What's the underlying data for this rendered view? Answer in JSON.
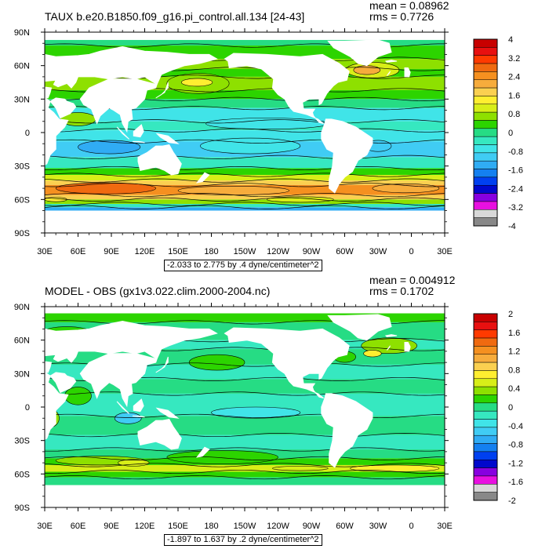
{
  "chart_data": [
    {
      "type": "heatmap",
      "title": "TAUX b.e20.B1850.f09_g16.pi_control.all.134 [24-43]",
      "mean_text": "mean = 0.08962",
      "rms_text": "rms = 0.7726",
      "range_text": "-2.033 to 2.775 by .4 dyne/centimeter^2",
      "x_ticks": [
        "30E",
        "60E",
        "90E",
        "120E",
        "150E",
        "180",
        "150W",
        "120W",
        "90W",
        "60W",
        "30W",
        "0",
        "30E"
      ],
      "y_ticks": [
        "90N",
        "60N",
        "30N",
        "0",
        "30S",
        "60S",
        "90S"
      ],
      "xlim": [
        30,
        390
      ],
      "ylim": [
        -90,
        90
      ],
      "colorbar": {
        "labels": [
          "4",
          "3.2",
          "2.4",
          "1.6",
          "0.8",
          "0",
          "-0.8",
          "-1.6",
          "-2.4",
          "-3.2",
          "-4"
        ],
        "colors": [
          "#c80000",
          "#e81010",
          "#ff3a00",
          "#f06a10",
          "#f59020",
          "#f7ac3c",
          "#fbd050",
          "#ffee30",
          "#d8ee18",
          "#8ee000",
          "#2cd400",
          "#26dc84",
          "#36e8c0",
          "#40e4e8",
          "#40ccf4",
          "#30acf4",
          "#1480f0",
          "#0040f0",
          "#0008cc",
          "#8800e0",
          "#e810e0",
          "#d8d8d8",
          "#888888"
        ]
      },
      "field": "taux-model"
    },
    {
      "type": "heatmap",
      "title": "MODEL - OBS (gx1v3.022.clim.2000-2004.nc)",
      "mean_text": "mean = 0.004912",
      "rms_text": "rms = 0.1702",
      "range_text": "-1.897 to 1.637 by .2 dyne/centimeter^2",
      "x_ticks": [
        "30E",
        "60E",
        "90E",
        "120E",
        "150E",
        "180",
        "150W",
        "120W",
        "90W",
        "60W",
        "30W",
        "0",
        "30E"
      ],
      "y_ticks": [
        "90N",
        "60N",
        "30N",
        "0",
        "30S",
        "60S",
        "90S"
      ],
      "xlim": [
        30,
        390
      ],
      "ylim": [
        -90,
        90
      ],
      "colorbar": {
        "labels": [
          "2",
          "1.6",
          "1.2",
          "0.8",
          "0.4",
          "0",
          "-0.4",
          "-0.8",
          "-1.2",
          "-1.6",
          "-2"
        ],
        "colors": [
          "#c80000",
          "#e81010",
          "#ff3a00",
          "#f06a10",
          "#f59020",
          "#f7ac3c",
          "#fbd050",
          "#ffee30",
          "#d8ee18",
          "#8ee000",
          "#2cd400",
          "#26dc84",
          "#36e8c0",
          "#40e4e8",
          "#40ccf4",
          "#30acf4",
          "#1480f0",
          "#0040f0",
          "#0008cc",
          "#8800e0",
          "#e810e0",
          "#d8d8d8",
          "#888888"
        ]
      },
      "field": "taux-diff"
    }
  ]
}
